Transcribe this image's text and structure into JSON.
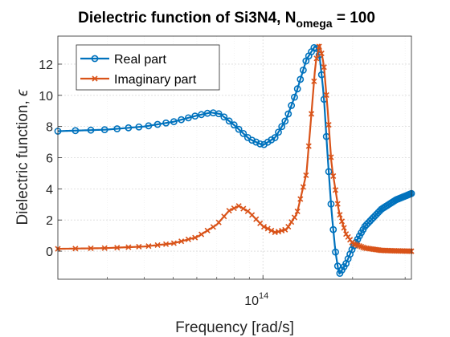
{
  "chart_data": {
    "type": "line",
    "title": "Dielectric function of Si3N4, N",
    "title_subscript": "omega",
    "title_suffix": " = 100",
    "xlabel": "Frequency [rad/s]",
    "ylabel": "Dielectric function, ",
    "ylabel_symbol": "ϵ",
    "x_scale": "log",
    "xlim": [
      20500000000000.0,
      315000000000000.0
    ],
    "ylim": [
      -1.8,
      13.8
    ],
    "x_ticks": [
      {
        "base": "10",
        "exp": "14",
        "value": 100000000000000.0
      }
    ],
    "y_ticks": [
      0,
      2,
      4,
      6,
      8,
      10,
      12
    ],
    "grid": true,
    "minor_grid": true,
    "legend_position": "top-left",
    "series": [
      {
        "name": "Real part",
        "color": "#0072BD",
        "marker": "circle",
        "x": [
          20500000000000.0,
          30000000000000.0,
          40000000000000.0,
          50000000000000.0,
          60000000000000.0,
          67000000000000.0,
          72000000000000.0,
          80000000000000.0,
          90000000000000.0,
          100000000000000.0,
          110000000000000.0,
          120000000000000.0,
          130000000000000.0,
          140000000000000.0,
          150000000000000.0,
          155000000000000.0,
          160000000000000.0,
          165000000000000.0,
          170000000000000.0,
          175000000000000.0,
          180000000000000.0,
          190000000000000.0,
          200000000000000.0,
          220000000000000.0,
          250000000000000.0,
          280000000000000.0,
          315000000000000.0
        ],
        "y": [
          7.7,
          7.8,
          8.0,
          8.3,
          8.7,
          8.9,
          8.8,
          8.1,
          7.2,
          6.8,
          7.3,
          8.5,
          10.3,
          12.3,
          13.2,
          12.5,
          10.0,
          6.0,
          2.5,
          0.0,
          -1.5,
          -0.8,
          0.2,
          1.6,
          2.7,
          3.3,
          3.7
        ]
      },
      {
        "name": "Imaginary part",
        "color": "#D95319",
        "marker": "x",
        "x": [
          20500000000000.0,
          30000000000000.0,
          40000000000000.0,
          50000000000000.0,
          60000000000000.0,
          70000000000000.0,
          77000000000000.0,
          83000000000000.0,
          90000000000000.0,
          100000000000000.0,
          110000000000000.0,
          120000000000000.0,
          130000000000000.0,
          140000000000000.0,
          145000000000000.0,
          150000000000000.0,
          155000000000000.0,
          160000000000000.0,
          165000000000000.0,
          170000000000000.0,
          180000000000000.0,
          190000000000000.0,
          200000000000000.0,
          220000000000000.0,
          250000000000000.0,
          280000000000000.0,
          315000000000000.0
        ],
        "y": [
          0.15,
          0.2,
          0.3,
          0.5,
          0.9,
          1.7,
          2.6,
          2.9,
          2.5,
          1.6,
          1.2,
          1.4,
          2.4,
          5.0,
          8.5,
          12.0,
          13.3,
          12.0,
          9.0,
          5.5,
          2.5,
          1.1,
          0.5,
          0.2,
          0.05,
          0.02,
          0.0
        ]
      }
    ]
  }
}
